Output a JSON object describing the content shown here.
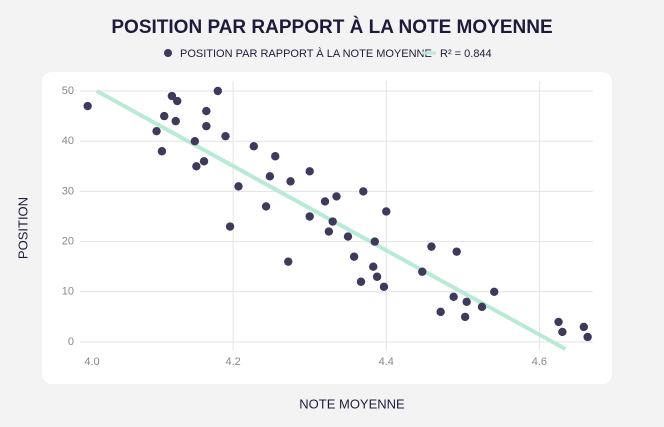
{
  "chart_data": {
    "type": "scatter",
    "title": "POSITION PAR RAPPORT À LA NOTE MOYENNE",
    "x_label": "NOTE MOYENNE",
    "y_label": "POSITION",
    "series": [
      {
        "name": "POSITION PAR RAPPORT À LA NOTE MOYENNE",
        "color": "#3d3a5c",
        "x": [
          4.01,
          4.12,
          4.127,
          4.18,
          4.11,
          4.125,
          4.165,
          4.1,
          4.165,
          4.19,
          4.15,
          4.107,
          4.227,
          4.255,
          4.162,
          4.152,
          4.3,
          4.248,
          4.275,
          4.207,
          4.37,
          4.335,
          4.32,
          4.243,
          4.4,
          4.3,
          4.33,
          4.196,
          4.325,
          4.35,
          4.385,
          4.459,
          4.492,
          4.358,
          4.272,
          4.383,
          4.447,
          4.388,
          4.367,
          4.397,
          4.541,
          4.488,
          4.505,
          4.525,
          4.471,
          4.503,
          4.625,
          4.658,
          4.63,
          4.663
        ],
        "values": [
          47,
          49,
          48,
          50,
          45,
          44,
          46,
          42,
          43,
          41,
          40,
          38,
          39,
          37,
          36,
          35,
          34,
          33,
          32,
          31,
          30,
          29,
          28,
          27,
          26,
          25,
          24,
          23,
          22,
          21,
          20,
          19,
          18,
          17,
          16,
          15,
          14,
          13,
          12,
          11,
          10,
          9,
          8,
          7,
          6,
          5,
          4,
          3,
          2,
          1
        ]
      },
      {
        "name": "R² = 0.844",
        "color": "#b8ead6",
        "x": [
          4.022,
          4.634
        ],
        "values": [
          50,
          -1.4
        ]
      }
    ],
    "xlim": [
      4.0,
      4.67
    ],
    "ylim": [
      0,
      50
    ],
    "xticks": [
      {
        "value": 4.0,
        "label": "4.0"
      },
      4.2,
      4.4,
      4.6
    ],
    "yticks": [
      0,
      10,
      20,
      30,
      40,
      50
    ],
    "grid": true
  }
}
